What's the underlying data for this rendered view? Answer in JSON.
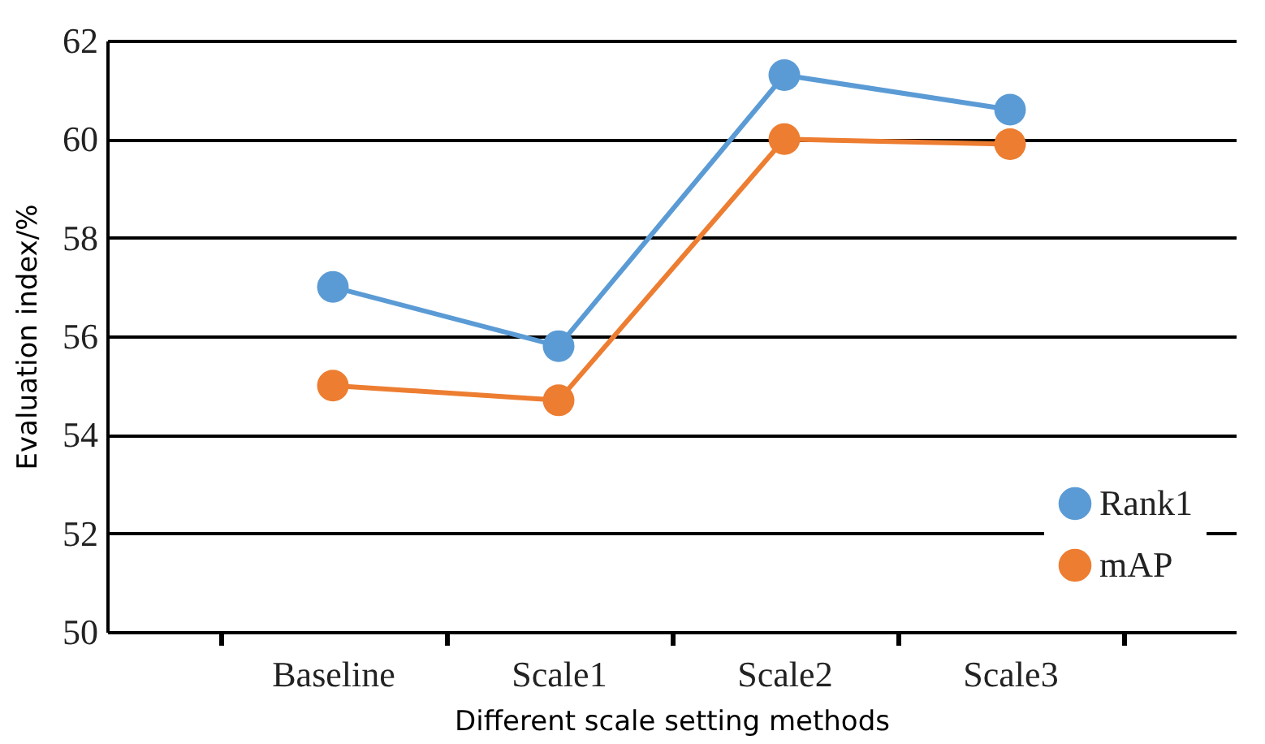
{
  "chart_data": {
    "type": "line",
    "xlabel": "Different scale setting methods",
    "ylabel": "Evaluation index/%",
    "categories": [
      "Baseline",
      "Scale1",
      "Scale2",
      "Scale3"
    ],
    "series": [
      {
        "name": "Rank1",
        "color": "#5b9bd5",
        "values": [
          57.0,
          55.8,
          61.3,
          60.6
        ]
      },
      {
        "name": "mAP",
        "color": "#ed7d31",
        "values": [
          55.0,
          54.7,
          60.0,
          59.9
        ]
      }
    ],
    "ylim": [
      50,
      62
    ],
    "yticks": [
      50,
      52,
      54,
      56,
      58,
      60,
      62
    ],
    "grid": "y",
    "legend": "bottom right",
    "marker": "circle",
    "line_style": "solid"
  }
}
